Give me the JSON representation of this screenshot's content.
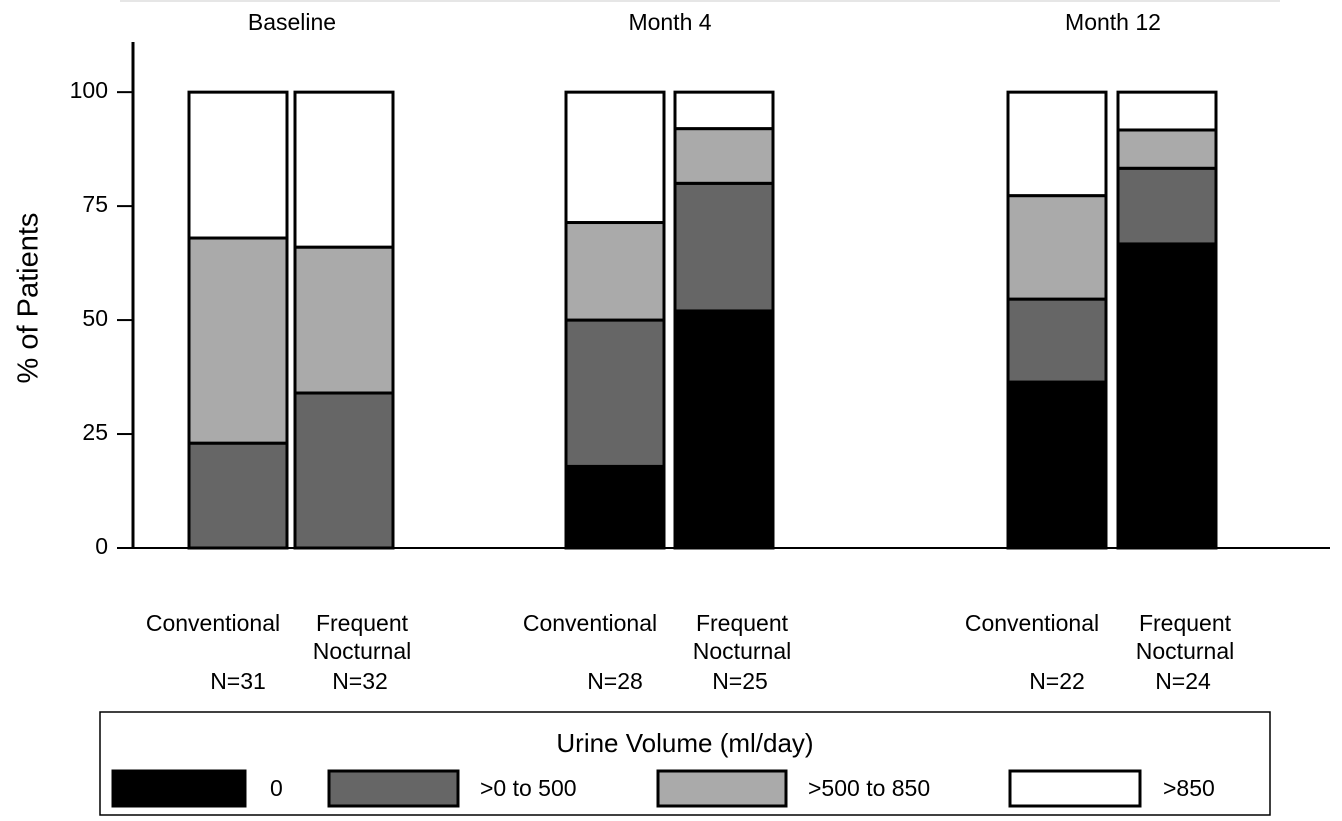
{
  "chart_data": {
    "type": "stacked-bar",
    "y_label": "% of Patients",
    "ylim": [
      0,
      111
    ],
    "yticks": [
      0,
      25,
      50,
      75,
      100
    ],
    "groups": [
      "Baseline",
      "Month 4",
      "Month 12"
    ],
    "categories": [
      [
        "Conventional"
      ],
      [
        "Frequent",
        "Nocturnal"
      ],
      [
        "Conventional"
      ],
      [
        "Frequent",
        "Nocturnal"
      ],
      [
        "Conventional"
      ],
      [
        "Frequent",
        "Nocturnal"
      ]
    ],
    "n_labels": [
      "N=31",
      "N=32",
      "N=28",
      "N=25",
      "N=22",
      "N=24"
    ],
    "legend_title": "Urine Volume (ml/day)",
    "series": [
      {
        "name": "0",
        "color": "#000000",
        "values": [
          0,
          0,
          17.9,
          52,
          36.4,
          66.7
        ]
      },
      {
        "name": ">0 to 500",
        "color": "#666666",
        "values": [
          23,
          34,
          32.1,
          28,
          18.2,
          16.6
        ]
      },
      {
        "name": ">500 to 850",
        "color": "#aaaaaa",
        "values": [
          45,
          32,
          21.4,
          12,
          22.7,
          8.4
        ]
      },
      {
        "name": ">850",
        "color": "#ffffff",
        "values": [
          32,
          34,
          28.6,
          8,
          22.7,
          8.3
        ]
      }
    ]
  }
}
